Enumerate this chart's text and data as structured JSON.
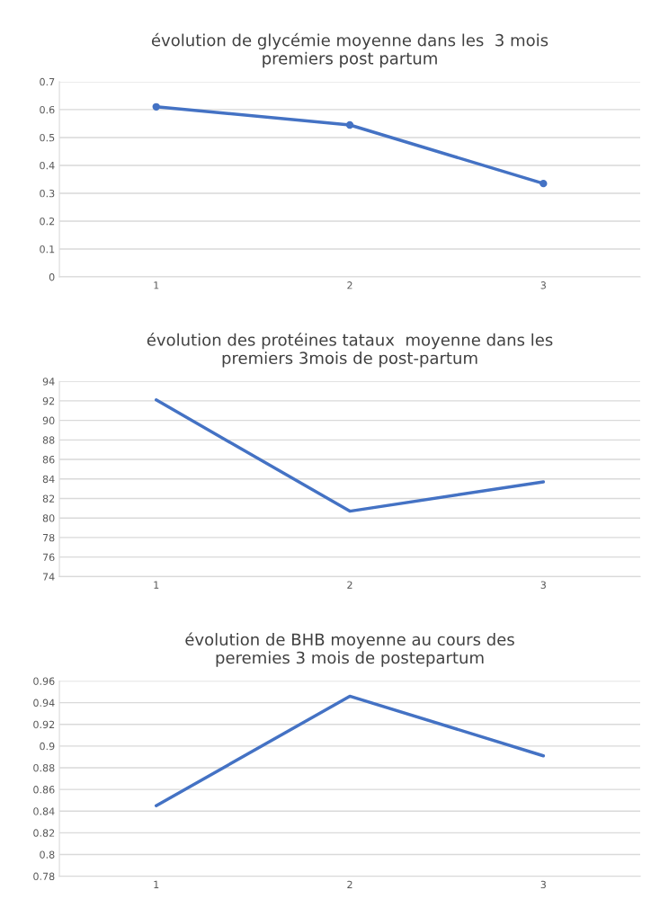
{
  "chart_data": [
    {
      "type": "line",
      "title": "évolution de glycémie moyenne dans les  3 mois\npremiers post partum",
      "categories": [
        "1",
        "2",
        "3"
      ],
      "series": [
        {
          "color": "#4472c4",
          "values": [
            0.61,
            0.545,
            0.335
          ]
        }
      ],
      "marker": "circle",
      "ylim": [
        0,
        0.7
      ],
      "yticks": [
        0,
        0.1,
        0.2,
        0.3,
        0.4,
        0.5,
        0.6,
        0.7
      ],
      "grid": "y",
      "line_style": "solid"
    },
    {
      "type": "line",
      "title": "évolution des protéines tataux  moyenne dans les\npremiers 3mois de post-partum",
      "categories": [
        "1",
        "2",
        "3"
      ],
      "series": [
        {
          "color": "#4472c4",
          "values": [
            92.1,
            80.7,
            83.7
          ]
        }
      ],
      "ylim": [
        74,
        94
      ],
      "yticks": [
        74,
        76,
        78,
        80,
        82,
        84,
        86,
        88,
        90,
        92,
        94
      ],
      "grid": "y",
      "line_style": "solid"
    },
    {
      "type": "line",
      "title": "évolution de BHB moyenne au cours des\nperemies 3 mois de postepartum",
      "categories": [
        "1",
        "2",
        "3"
      ],
      "series": [
        {
          "color": "#4472c4",
          "values": [
            0.845,
            0.946,
            0.891
          ]
        }
      ],
      "ylim": [
        0.78,
        0.96
      ],
      "yticks": [
        0.78,
        0.8,
        0.82,
        0.84,
        0.86,
        0.88,
        0.9,
        0.92,
        0.94,
        0.96
      ],
      "grid": "y",
      "line_style": "solid"
    }
  ]
}
